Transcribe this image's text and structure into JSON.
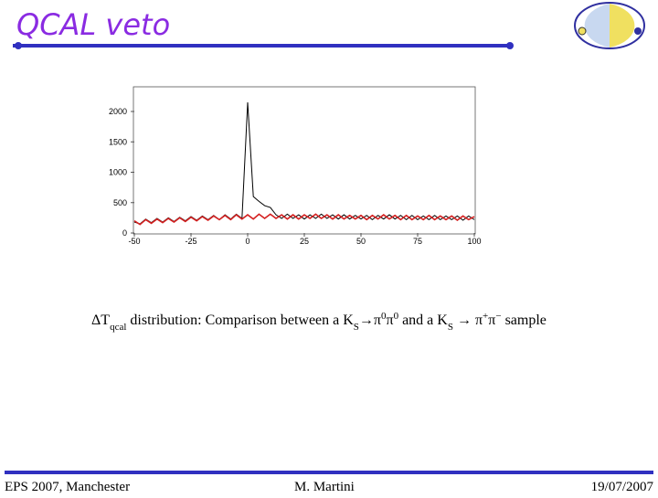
{
  "header": {
    "title": "QCAL veto"
  },
  "chart_data": {
    "type": "line",
    "x": [
      -50,
      -47.5,
      -45,
      -42.5,
      -40,
      -37.5,
      -35,
      -32.5,
      -30,
      -27.5,
      -25,
      -22.5,
      -20,
      -17.5,
      -15,
      -12.5,
      -10,
      -7.5,
      -5,
      -2.5,
      0,
      2.5,
      5,
      7.5,
      10,
      12.5,
      15,
      17.5,
      20,
      22.5,
      25,
      27.5,
      30,
      32.5,
      35,
      37.5,
      40,
      42.5,
      45,
      47.5,
      50,
      52.5,
      55,
      57.5,
      60,
      62.5,
      65,
      67.5,
      70,
      72.5,
      75,
      77.5,
      80,
      82.5,
      85,
      87.5,
      90,
      92.5,
      95,
      97.5,
      100
    ],
    "series": [
      {
        "color": "#000000",
        "values": [
          180,
          150,
          230,
          170,
          240,
          180,
          250,
          190,
          260,
          200,
          270,
          210,
          280,
          220,
          290,
          220,
          300,
          230,
          310,
          240,
          2150,
          600,
          520,
          450,
          420,
          300,
          240,
          310,
          240,
          300,
          230,
          300,
          240,
          310,
          240,
          300,
          230,
          300,
          230,
          290,
          230,
          290,
          220,
          290,
          230,
          300,
          230,
          290,
          220,
          290,
          220,
          280,
          220,
          290,
          220,
          280,
          220,
          280,
          210,
          280,
          220
        ]
      },
      {
        "color": "#d42020",
        "values": [
          200,
          140,
          220,
          160,
          230,
          170,
          240,
          180,
          250,
          190,
          260,
          200,
          270,
          210,
          280,
          220,
          290,
          220,
          300,
          230,
          300,
          230,
          310,
          240,
          310,
          240,
          300,
          230,
          300,
          230,
          300,
          240,
          310,
          240,
          300,
          230,
          300,
          230,
          290,
          230,
          290,
          220,
          290,
          230,
          300,
          230,
          290,
          220,
          290,
          220,
          280,
          220,
          290,
          220,
          280,
          220,
          280,
          210,
          280,
          220,
          270
        ]
      }
    ],
    "xlim": [
      -50,
      100
    ],
    "xticks": [
      -50,
      -25,
      0,
      25,
      50,
      75,
      100
    ],
    "ylim": [
      0,
      2400
    ],
    "yticks": [
      0,
      500,
      1000,
      1500,
      2000
    ]
  },
  "caption": {
    "parts": [
      "ΔT",
      "qcal",
      " distribution: Comparison between a K",
      "S",
      "→π",
      "0",
      "π",
      "0",
      " and a K",
      "S",
      " → π",
      "+",
      "π",
      "−",
      " sample"
    ]
  },
  "footer": {
    "left": "EPS 2007, Manchester",
    "center": "M. Martini",
    "right": "19/07/2007"
  }
}
